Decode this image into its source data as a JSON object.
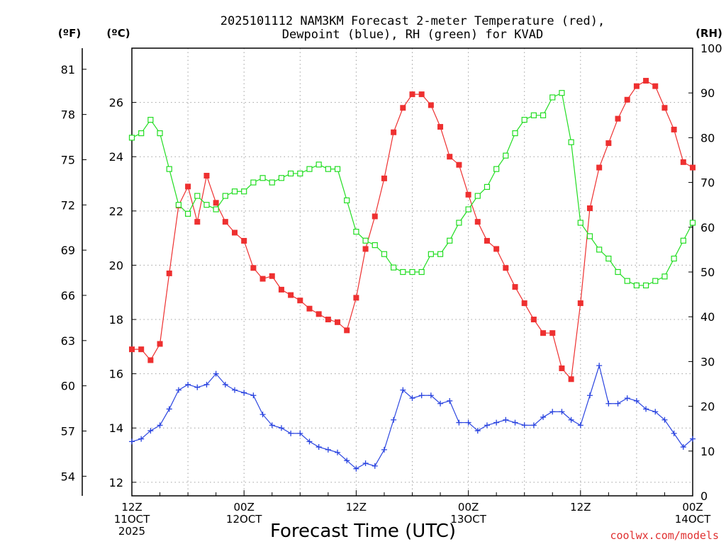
{
  "chart_data": {
    "type": "line",
    "title_line1": "2025101112 NAM3KM Forecast 2-meter Temperature (red),",
    "title_line2": "Dewpoint (blue), RH (green) for KVAD",
    "xlabel": "Forecast Time (UTC)",
    "credit": "coolwx.com/models",
    "units": {
      "fahrenheit": "(ºF)",
      "celsius": "(ºC)",
      "rh": "(RH)"
    },
    "x_range_hours": [
      0,
      60
    ],
    "celsius_range": [
      11.5,
      28
    ],
    "rh_range": [
      0,
      100
    ],
    "fahrenheit_ticks": [
      "54",
      "57",
      "60",
      "63",
      "66",
      "69",
      "72",
      "75",
      "78",
      "81"
    ],
    "fahrenheit_tick_values": [
      54,
      57,
      60,
      63,
      66,
      69,
      72,
      75,
      78,
      81
    ],
    "celsius_ticks": [
      "12",
      "14",
      "16",
      "18",
      "20",
      "22",
      "24",
      "26"
    ],
    "celsius_tick_values": [
      12,
      14,
      16,
      18,
      20,
      22,
      24,
      26
    ],
    "rh_ticks": [
      "0",
      "10",
      "20",
      "30",
      "40",
      "50",
      "60",
      "70",
      "80",
      "90",
      "100"
    ],
    "rh_tick_values": [
      0,
      10,
      20,
      30,
      40,
      50,
      60,
      70,
      80,
      90,
      100
    ],
    "x_ticks": [
      {
        "hour": 0,
        "line1": "12Z",
        "line2": "11OCT",
        "line3": "2025"
      },
      {
        "hour": 12,
        "line1": "00Z",
        "line2": "12OCT",
        "line3": ""
      },
      {
        "hour": 24,
        "line1": "12Z",
        "line2": "",
        "line3": ""
      },
      {
        "hour": 36,
        "line1": "00Z",
        "line2": "13OCT",
        "line3": ""
      },
      {
        "hour": 48,
        "line1": "12Z",
        "line2": "",
        "line3": ""
      },
      {
        "hour": 60,
        "line1": "00Z",
        "line2": "14OCT",
        "line3": ""
      }
    ],
    "colors": {
      "temperature": "#ee3030",
      "dewpoint": "#2a44e0",
      "rh": "#22dd22",
      "grid": "#a0a0a0"
    },
    "series": [
      {
        "name": "Temperature",
        "unit": "C",
        "marker": "filled-square",
        "x": [
          0,
          1,
          2,
          3,
          4,
          5,
          6,
          7,
          8,
          9,
          10,
          11,
          12,
          13,
          14,
          15,
          16,
          17,
          18,
          19,
          20,
          21,
          22,
          23,
          24,
          25,
          26,
          27,
          28,
          29,
          30,
          31,
          32,
          33,
          34,
          35,
          36,
          37,
          38,
          39,
          40,
          41,
          42,
          43,
          44,
          45,
          46,
          47,
          48,
          49,
          50,
          51,
          52,
          53,
          54,
          55,
          56,
          57,
          58,
          59,
          60
        ],
        "values": [
          16.9,
          16.9,
          16.5,
          17.1,
          19.7,
          22.2,
          22.9,
          21.6,
          23.3,
          22.3,
          21.6,
          21.2,
          20.9,
          19.9,
          19.5,
          19.6,
          19.1,
          18.9,
          18.7,
          18.4,
          18.2,
          18.0,
          17.9,
          17.6,
          18.8,
          20.6,
          21.8,
          23.2,
          24.9,
          25.8,
          26.3,
          26.3,
          25.9,
          25.1,
          24.0,
          23.7,
          22.6,
          21.6,
          20.9,
          20.6,
          19.9,
          19.2,
          18.6,
          18.0,
          17.5,
          17.5,
          16.2,
          15.8,
          18.6,
          22.1,
          23.6,
          24.5,
          25.4,
          26.1,
          26.6,
          26.8,
          26.6,
          25.8,
          25.0,
          23.8,
          23.6
        ],
        "display_note": "last point continues beyond axis limit"
      },
      {
        "name": "Dewpoint",
        "unit": "C",
        "marker": "plus",
        "x": [
          0,
          1,
          2,
          3,
          4,
          5,
          6,
          7,
          8,
          9,
          10,
          11,
          12,
          13,
          14,
          15,
          16,
          17,
          18,
          19,
          20,
          21,
          22,
          23,
          24,
          25,
          26,
          27,
          28,
          29,
          30,
          31,
          32,
          33,
          34,
          35,
          36,
          37,
          38,
          39,
          40,
          41,
          42,
          43,
          44,
          45,
          46,
          47,
          48,
          49,
          50,
          51,
          52,
          53,
          54,
          55,
          56,
          57,
          58,
          59,
          60
        ],
        "values": [
          13.5,
          13.6,
          13.9,
          14.1,
          14.7,
          15.4,
          15.6,
          15.5,
          15.6,
          16.0,
          15.6,
          15.4,
          15.3,
          15.2,
          14.5,
          14.1,
          14.0,
          13.8,
          13.8,
          13.5,
          13.3,
          13.2,
          13.1,
          12.8,
          12.5,
          12.7,
          12.6,
          13.2,
          14.3,
          15.4,
          15.1,
          15.2,
          15.2,
          14.9,
          15.0,
          14.2,
          14.2,
          13.9,
          14.1,
          14.2,
          14.3,
          14.2,
          14.1,
          14.1,
          14.4,
          14.6,
          14.6,
          14.3,
          14.1,
          15.2,
          16.3,
          14.9,
          14.9,
          15.1,
          15.0,
          14.7,
          14.6,
          14.3,
          13.8,
          13.3,
          13.6
        ]
      },
      {
        "name": "RH",
        "unit": "%",
        "marker": "open-square",
        "x": [
          0,
          1,
          2,
          3,
          4,
          5,
          6,
          7,
          8,
          9,
          10,
          11,
          12,
          13,
          14,
          15,
          16,
          17,
          18,
          19,
          20,
          21,
          22,
          23,
          24,
          25,
          26,
          27,
          28,
          29,
          30,
          31,
          32,
          33,
          34,
          35,
          36,
          37,
          38,
          39,
          40,
          41,
          42,
          43,
          44,
          45,
          46,
          47,
          48,
          49,
          50,
          51,
          52,
          53,
          54,
          55,
          56,
          57,
          58,
          59,
          60
        ],
        "values": [
          80,
          81,
          84,
          81,
          73,
          65,
          63,
          67,
          65,
          64,
          67,
          68,
          68,
          70,
          71,
          70,
          71,
          72,
          72,
          73,
          74,
          73,
          73,
          66,
          59,
          57,
          56,
          54,
          51,
          50,
          50,
          50,
          54,
          54,
          57,
          61,
          64,
          67,
          69,
          73,
          76,
          81,
          84,
          85,
          85,
          89,
          90,
          79,
          61,
          58,
          55,
          53,
          50,
          48,
          47,
          47,
          48,
          49,
          53,
          57,
          61
        ],
        "display_note": "last point continues beyond axis limit"
      }
    ]
  }
}
